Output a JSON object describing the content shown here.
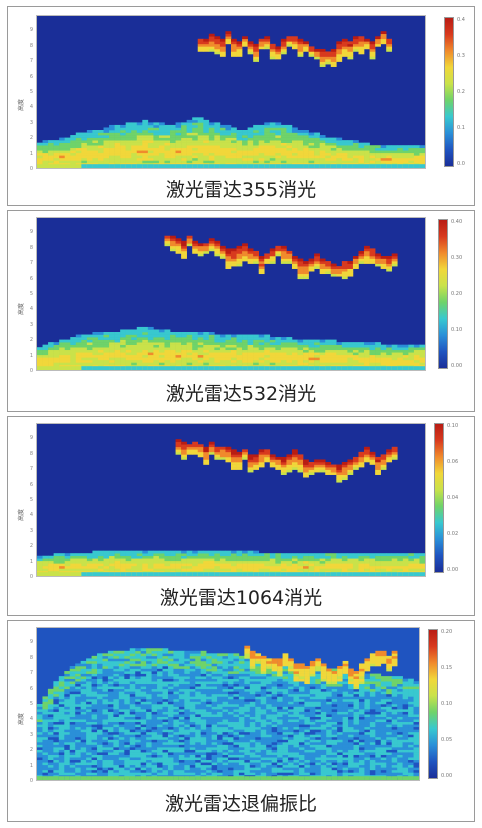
{
  "colors": {
    "border": "#9a9a9a",
    "colormap": [
      "#1a2e98",
      "#1f54c0",
      "#2a8fd8",
      "#38c8cf",
      "#6fd36a",
      "#c9e24a",
      "#f1d73a",
      "#f08a2c",
      "#d83a1e",
      "#b81c14"
    ]
  },
  "chart_data": [
    {
      "type": "heatmap",
      "title": "激光雷达355消光",
      "ylabel": "高度",
      "y_ticks": [
        "9",
        "8",
        "7",
        "6",
        "5",
        "4",
        "3",
        "2",
        "1",
        "0"
      ],
      "colorbar_ticks": [
        "0.4",
        "0.3",
        "0.2",
        "0.1",
        "0.0"
      ],
      "cloud_top": [
        null,
        null,
        null,
        null,
        null,
        null,
        null,
        null,
        null,
        null,
        null,
        null,
        null,
        null,
        null,
        null,
        null,
        null,
        null,
        null,
        null,
        null,
        null,
        null,
        null,
        null,
        null,
        null,
        null,
        8.4,
        8.6,
        8.8,
        8.7,
        8.5,
        8.9,
        8.6,
        8.4,
        8.7,
        8.3,
        8.1,
        8.5,
        8.6,
        8.2,
        8.0,
        8.4,
        8.7,
        8.8,
        8.6,
        8.3,
        8.0,
        7.9,
        7.8,
        7.7,
        7.9,
        8.2,
        8.4,
        8.3,
        8.6,
        8.8,
        8.5,
        8.2,
        8.7,
        8.9,
        8.5,
        null,
        null,
        null,
        null,
        null,
        null
      ],
      "aerosol_top": [
        1.6,
        1.7,
        1.8,
        1.8,
        1.9,
        2.0,
        2.1,
        2.2,
        2.3,
        2.4,
        2.5,
        2.5,
        2.6,
        2.7,
        2.8,
        2.8,
        2.9,
        3.0,
        3.0,
        3.1,
        3.0,
        2.9,
        2.9,
        2.8,
        2.8,
        2.9,
        3.0,
        3.1,
        3.2,
        3.2,
        3.1,
        3.0,
        2.9,
        2.8,
        2.7,
        2.6,
        2.5,
        2.5,
        2.6,
        2.7,
        2.8,
        2.9,
        3.0,
        2.9,
        2.8,
        2.7,
        2.6,
        2.5,
        2.4,
        2.3,
        2.2,
        2.1,
        2.0,
        1.9,
        1.9,
        1.8,
        1.7,
        1.7,
        1.6,
        1.6,
        1.5,
        1.5,
        1.4,
        1.4,
        1.4,
        1.4,
        1.4,
        1.4,
        1.4,
        1.4
      ]
    },
    {
      "type": "heatmap",
      "title": "激光雷达532消光",
      "ylabel": "高度",
      "y_ticks": [
        "9",
        "8",
        "7",
        "6",
        "5",
        "4",
        "3",
        "2",
        "1",
        "0"
      ],
      "colorbar_ticks": [
        "0.40",
        "0.30",
        "0.20",
        "0.10",
        "0.00"
      ],
      "cloud_top": [
        null,
        null,
        null,
        null,
        null,
        null,
        null,
        null,
        null,
        null,
        null,
        null,
        null,
        null,
        null,
        null,
        null,
        null,
        null,
        null,
        null,
        null,
        null,
        8.8,
        8.9,
        8.7,
        8.6,
        8.8,
        8.5,
        8.3,
        8.4,
        8.6,
        8.5,
        8.2,
        8.0,
        7.9,
        8.1,
        8.3,
        8.0,
        7.8,
        7.6,
        7.8,
        8.0,
        8.2,
        8.1,
        7.8,
        7.5,
        7.3,
        7.2,
        7.4,
        7.6,
        7.3,
        7.1,
        7.0,
        6.9,
        7.1,
        7.3,
        7.6,
        7.9,
        8.3,
        8.0,
        7.7,
        7.5,
        7.4,
        7.6,
        null,
        null,
        null,
        null,
        null
      ],
      "aerosol_top": [
        1.5,
        1.6,
        1.7,
        1.8,
        1.9,
        2.0,
        2.1,
        2.2,
        2.3,
        2.3,
        2.4,
        2.4,
        2.5,
        2.5,
        2.5,
        2.6,
        2.6,
        2.6,
        2.7,
        2.7,
        2.7,
        2.6,
        2.6,
        2.6,
        2.5,
        2.5,
        2.5,
        2.5,
        2.4,
        2.4,
        2.4,
        2.4,
        2.3,
        2.3,
        2.3,
        2.3,
        2.3,
        2.2,
        2.2,
        2.2,
        2.2,
        2.2,
        2.1,
        2.1,
        2.1,
        2.1,
        2.0,
        2.0,
        2.0,
        2.0,
        1.9,
        1.9,
        1.9,
        1.9,
        1.8,
        1.8,
        1.8,
        1.8,
        1.7,
        1.7,
        1.7,
        1.7,
        1.6,
        1.6,
        1.6,
        1.6,
        1.6,
        1.6,
        1.6,
        1.6
      ]
    },
    {
      "type": "heatmap",
      "title": "激光雷达1064消光",
      "ylabel": "高度",
      "y_ticks": [
        "9",
        "8",
        "7",
        "6",
        "5",
        "4",
        "3",
        "2",
        "1",
        "0"
      ],
      "colorbar_ticks": [
        "0.10",
        "0.06",
        "0.04",
        "0.02",
        "0.00"
      ],
      "cloud_top": [
        null,
        null,
        null,
        null,
        null,
        null,
        null,
        null,
        null,
        null,
        null,
        null,
        null,
        null,
        null,
        null,
        null,
        null,
        null,
        null,
        null,
        null,
        null,
        null,
        null,
        9.0,
        8.9,
        8.8,
        8.9,
        8.7,
        8.6,
        8.8,
        8.5,
        8.4,
        8.6,
        8.3,
        8.2,
        8.4,
        8.1,
        8.0,
        8.2,
        8.4,
        8.1,
        7.9,
        7.8,
        8.0,
        8.2,
        7.9,
        7.7,
        7.5,
        7.6,
        7.8,
        7.6,
        7.4,
        7.3,
        7.5,
        7.7,
        7.9,
        8.1,
        8.4,
        8.2,
        7.9,
        8.0,
        8.3,
        8.5,
        null,
        null,
        null,
        null,
        null
      ],
      "aerosol_top": [
        1.2,
        1.3,
        1.3,
        1.4,
        1.4,
        1.4,
        1.5,
        1.5,
        1.5,
        1.5,
        1.6,
        1.6,
        1.6,
        1.6,
        1.6,
        1.6,
        1.6,
        1.6,
        1.6,
        1.6,
        1.6,
        1.6,
        1.6,
        1.6,
        1.6,
        1.6,
        1.6,
        1.6,
        1.6,
        1.6,
        1.6,
        1.6,
        1.6,
        1.6,
        1.6,
        1.6,
        1.6,
        1.6,
        1.6,
        1.6,
        1.5,
        1.5,
        1.5,
        1.5,
        1.5,
        1.5,
        1.5,
        1.5,
        1.5,
        1.5,
        1.5,
        1.5,
        1.5,
        1.5,
        1.5,
        1.5,
        1.5,
        1.5,
        1.5,
        1.5,
        1.5,
        1.5,
        1.5,
        1.5,
        1.5,
        1.5,
        1.5,
        1.5,
        1.5,
        1.5
      ]
    },
    {
      "type": "heatmap",
      "title": "激光雷达退偏振比",
      "ylabel": "高度",
      "y_ticks": [
        "9",
        "8",
        "7",
        "6",
        "5",
        "4",
        "3",
        "2",
        "1",
        "0"
      ],
      "colorbar_ticks": [
        "0.20",
        "0.15",
        "0.10",
        "0.05",
        "0.00"
      ],
      "cloud_top": [
        null,
        null,
        null,
        null,
        null,
        null,
        null,
        null,
        null,
        null,
        null,
        null,
        null,
        null,
        null,
        null,
        null,
        null,
        null,
        null,
        null,
        null,
        null,
        null,
        null,
        null,
        null,
        null,
        null,
        null,
        null,
        null,
        null,
        null,
        null,
        null,
        null,
        null,
        8.9,
        8.6,
        8.4,
        8.2,
        8.0,
        7.9,
        8.1,
        8.3,
        8.0,
        7.8,
        7.6,
        7.5,
        7.7,
        7.9,
        7.6,
        7.4,
        7.3,
        7.5,
        7.7,
        7.4,
        7.2,
        7.6,
        8.0,
        8.3,
        8.6,
        8.4,
        8.1,
        8.5,
        null,
        null,
        null,
        null
      ],
      "aerosol_top": [
        5.0,
        5.5,
        6.0,
        6.4,
        6.8,
        7.1,
        7.4,
        7.6,
        7.8,
        8.0,
        8.1,
        8.2,
        8.3,
        8.4,
        8.4,
        8.5,
        8.5,
        8.6,
        8.6,
        8.6,
        8.6,
        8.6,
        8.6,
        8.6,
        8.5,
        8.5,
        8.5,
        8.5,
        8.4,
        8.4,
        8.4,
        8.3,
        8.3,
        8.3,
        8.2,
        8.2,
        8.2,
        8.1,
        8.1,
        8.0,
        8.0,
        7.9,
        7.9,
        7.8,
        7.8,
        7.7,
        7.7,
        7.6,
        7.6,
        7.5,
        7.5,
        7.4,
        7.4,
        7.3,
        7.3,
        7.2,
        7.2,
        7.1,
        7.1,
        7.0,
        7.0,
        6.9,
        6.9,
        6.8,
        6.8,
        6.7,
        6.7,
        6.6,
        6.6,
        6.5
      ]
    }
  ]
}
